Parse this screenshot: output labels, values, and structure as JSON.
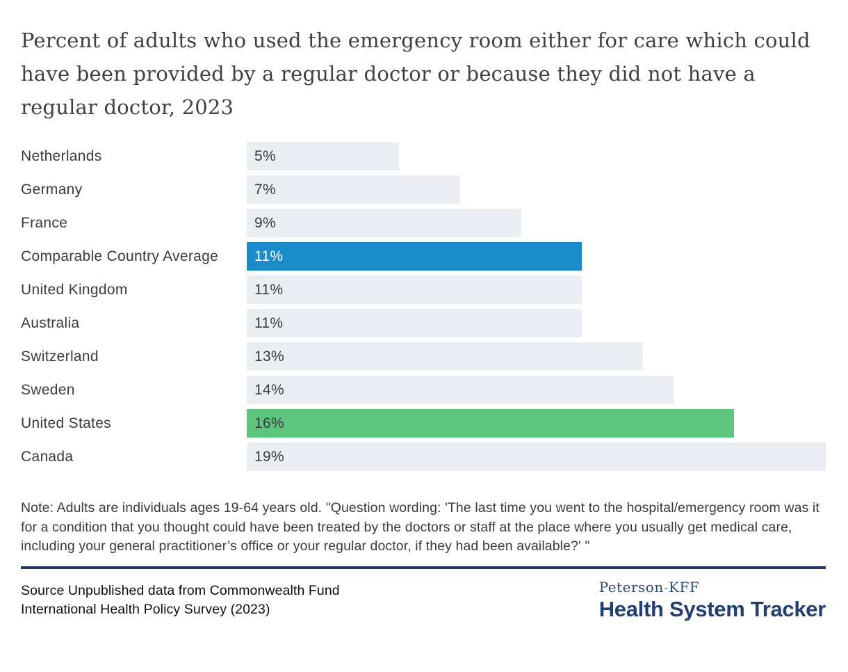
{
  "chart_data": {
    "type": "bar",
    "orientation": "horizontal",
    "title": "Percent of adults who used the emergency room either for care which could have been provided by a regular doctor or because they did not have a regular doctor, 2023",
    "xlabel": "",
    "ylabel": "",
    "xlim": [
      0,
      19
    ],
    "xmax": 19,
    "grid": false,
    "legend": "none",
    "categories": [
      "Netherlands",
      "Germany",
      "France",
      "Comparable Country Average",
      "United Kingdom",
      "Australia",
      "Switzerland",
      "Sweden",
      "United States",
      "Canada"
    ],
    "values": [
      5,
      7,
      9,
      11,
      11,
      11,
      13,
      14,
      16,
      19
    ],
    "bars": [
      {
        "label": "Netherlands",
        "value": 5,
        "display": "5%",
        "color": "bar_default",
        "text": "dark"
      },
      {
        "label": "Germany",
        "value": 7,
        "display": "7%",
        "color": "bar_default",
        "text": "dark"
      },
      {
        "label": "France",
        "value": 9,
        "display": "9%",
        "color": "bar_default",
        "text": "dark"
      },
      {
        "label": "Comparable Country Average",
        "value": 11,
        "display": "11%",
        "color": "bar_average",
        "text": "light"
      },
      {
        "label": "United Kingdom",
        "value": 11,
        "display": "11%",
        "color": "bar_default",
        "text": "dark"
      },
      {
        "label": "Australia",
        "value": 11,
        "display": "11%",
        "color": "bar_default",
        "text": "dark"
      },
      {
        "label": "Switzerland",
        "value": 13,
        "display": "13%",
        "color": "bar_default",
        "text": "dark"
      },
      {
        "label": "Sweden",
        "value": 14,
        "display": "14%",
        "color": "bar_default",
        "text": "dark"
      },
      {
        "label": "United States",
        "value": 16,
        "display": "16%",
        "color": "bar_us",
        "text": "dark"
      },
      {
        "label": "Canada",
        "value": 19,
        "display": "19%",
        "color": "bar_default",
        "text": "dark"
      }
    ]
  },
  "colors": {
    "bar_default": "#eaeef2",
    "bar_average": "#1b8cca",
    "bar_us": "#5ec57e",
    "value_text_dark": "#3b3b3b",
    "value_text_light": "#ffffff",
    "divider_navy": "#1e3a68",
    "logo_navy": "#233e72",
    "logo_hyphen_green": "#4f9e5f"
  },
  "note": "Note: Adults are individuals ages 19-64 years old. \"Question wording: 'The last time you went to the hospital/emergency room was it for a condition that you thought could have been treated by the doctors or staff at the place where you usually get medical care, including your general practitioner’s office or your regular doctor, if they had been available?' \"",
  "source": {
    "line1": "Source Unpublished data from Commonwealth Fund",
    "line2": "International Health Policy Survey (2023)"
  },
  "logo": {
    "peterson": "Peterson",
    "hyphen": "-",
    "kff": "KFF",
    "tracker": "Health System Tracker"
  }
}
